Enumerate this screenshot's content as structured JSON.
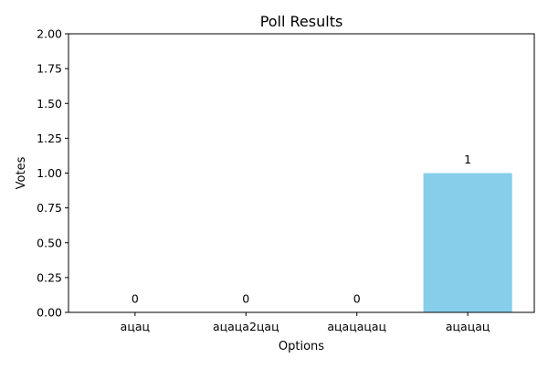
{
  "chart_data": {
    "type": "bar",
    "title": "Poll Results",
    "xlabel": "Options",
    "ylabel": "Votes",
    "categories": [
      "ацац",
      "ацаца2цац",
      "ацацацац",
      "ацацац"
    ],
    "values": [
      0,
      0,
      0,
      1
    ],
    "data_labels": [
      "0",
      "0",
      "0",
      "1"
    ],
    "ylim": [
      0,
      2
    ],
    "yticks": [
      0,
      0.25,
      0.5,
      0.75,
      1.0,
      1.25,
      1.5,
      1.75,
      2.0
    ],
    "ytick_labels": [
      "0.00",
      "0.25",
      "0.50",
      "0.75",
      "1.00",
      "1.25",
      "1.50",
      "1.75",
      "2.00"
    ],
    "bar_color": "#87ceeb",
    "grid": false,
    "legend": "none"
  }
}
